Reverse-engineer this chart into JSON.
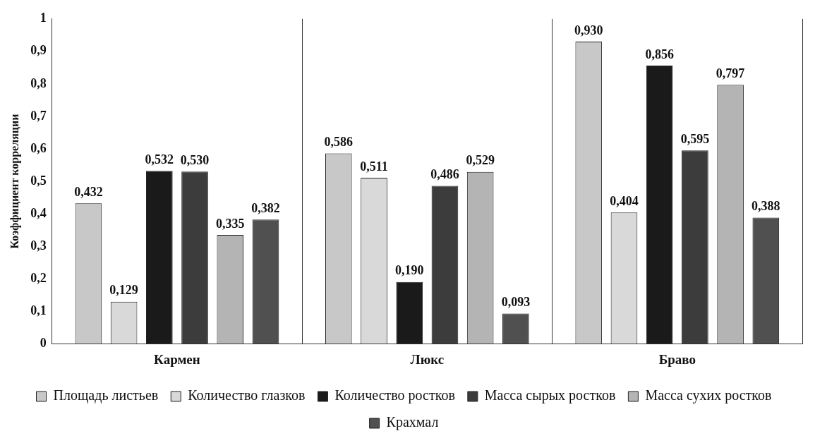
{
  "chart_data": {
    "type": "bar",
    "ylabel": "Коэффициент корреляции",
    "categories": [
      "Кармен",
      "Люкс",
      "Браво"
    ],
    "series": [
      {
        "name": "Площадь листьев",
        "color": "#c8c8c8",
        "values": [
          0.432,
          0.586,
          0.93
        ],
        "value_labels": [
          "0,432",
          "0,586",
          "0,930"
        ]
      },
      {
        "name": "Количество глазков",
        "color": "#d9d9d9",
        "values": [
          0.129,
          0.511,
          0.404
        ],
        "value_labels": [
          "0,129",
          "0,511",
          "0,404"
        ]
      },
      {
        "name": "Количество ростков",
        "color": "#1a1a1a",
        "values": [
          0.532,
          0.19,
          0.856
        ],
        "value_labels": [
          "0,532",
          "0,190",
          "0,856"
        ]
      },
      {
        "name": "Масса сырых ростков",
        "color": "#3c3c3c",
        "values": [
          0.53,
          0.486,
          0.595
        ],
        "value_labels": [
          "0,530",
          "0,486",
          "0,595"
        ]
      },
      {
        "name": "Масса сухих ростков",
        "color": "#b4b4b4",
        "values": [
          0.335,
          0.529,
          0.797
        ],
        "value_labels": [
          "0,335",
          "0,529",
          "0,797"
        ]
      },
      {
        "name": "Крахмал",
        "color": "#505050",
        "values": [
          0.382,
          0.093,
          0.388
        ],
        "value_labels": [
          "0,382",
          "0,093",
          "0,388"
        ]
      }
    ],
    "ylim": [
      0,
      1
    ],
    "yticks": [
      0,
      {
        "value": 0.1,
        "label": "0,1"
      },
      {
        "value": 0.2,
        "label": "0,2"
      },
      {
        "value": 0.3,
        "label": "0,3"
      },
      {
        "value": 0.4,
        "label": "0,4"
      },
      {
        "value": 0.5,
        "label": "0,5"
      },
      {
        "value": 0.6,
        "label": "0,6"
      },
      {
        "value": 0.7,
        "label": "0,7"
      },
      {
        "value": 0.8,
        "label": "0,8"
      },
      {
        "value": 0.9,
        "label": "0,9"
      },
      1
    ],
    "grid": "x",
    "legend": "bottom"
  }
}
